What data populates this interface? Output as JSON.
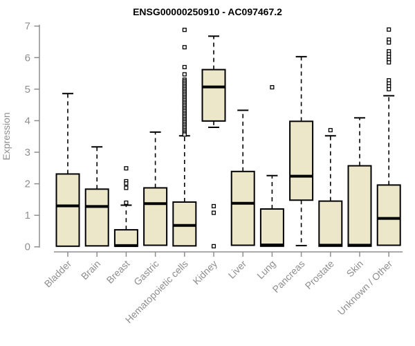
{
  "chart_data": {
    "type": "boxplot",
    "title": "ENSG00000250910 - AC097467.2",
    "ylabel": "Expression",
    "xlabel": "",
    "ylim": [
      0,
      7
    ],
    "yticks": [
      0,
      1,
      2,
      3,
      4,
      5,
      6,
      7
    ],
    "grid": false,
    "legend": "none",
    "colors": {
      "box_fill": "#EDE7C9",
      "box_stroke": "#000000",
      "median": "#000000",
      "whisker": "#000000",
      "axis": "#8e8e8e",
      "title": "#000000",
      "background": "#ffffff"
    },
    "categories": [
      "Bladder",
      "Brain",
      "Breast",
      "Gastric",
      "Hematopoietic cells",
      "Kidney",
      "Liver",
      "Lung",
      "Pancreas",
      "Prostate",
      "Skin",
      "Unknown / Other"
    ],
    "series": [
      {
        "category": "Bladder",
        "low": 0.02,
        "q1": 0.02,
        "median": 1.3,
        "q3": 2.31,
        "high": 4.86,
        "outliers": []
      },
      {
        "category": "Brain",
        "low": 0.03,
        "q1": 0.03,
        "median": 1.28,
        "q3": 1.83,
        "high": 3.17,
        "outliers": []
      },
      {
        "category": "Breast",
        "low": 0.02,
        "q1": 0.02,
        "median": 0.04,
        "q3": 0.54,
        "high": 1.32,
        "outliers": [
          2.49,
          2.08,
          2.01,
          1.87,
          1.4
        ]
      },
      {
        "category": "Gastric",
        "low": 0.05,
        "q1": 0.05,
        "median": 1.37,
        "q3": 1.87,
        "high": 3.64,
        "outliers": []
      },
      {
        "category": "Hematopoietic cells",
        "low": 0.03,
        "q1": 0.03,
        "median": 0.68,
        "q3": 1.42,
        "high": 3.52,
        "outliers": [
          6.88,
          6.33,
          5.7,
          5.47,
          5.3,
          5.25,
          5.2,
          5.15,
          5.1,
          5.05,
          5.0,
          4.95,
          4.9,
          4.85,
          4.8,
          4.75,
          4.7,
          4.65,
          4.6,
          4.55,
          4.5,
          4.45,
          4.4,
          4.35,
          4.3,
          4.25,
          4.2,
          4.15,
          4.1,
          4.05,
          4.0,
          3.95,
          3.9,
          3.85,
          3.8,
          3.75,
          3.7,
          3.65,
          3.6,
          3.56
        ]
      },
      {
        "category": "Kidney",
        "low": 3.79,
        "q1": 3.99,
        "median": 5.07,
        "q3": 5.62,
        "high": 6.68,
        "outliers": [
          1.29,
          1.08,
          0.02
        ]
      },
      {
        "category": "Liver",
        "low": 0.05,
        "q1": 0.05,
        "median": 1.38,
        "q3": 2.39,
        "high": 4.33,
        "outliers": []
      },
      {
        "category": "Lung",
        "low": 0.02,
        "q1": 0.02,
        "median": 0.06,
        "q3": 1.2,
        "high": 2.26,
        "outliers": [
          5.06
        ]
      },
      {
        "category": "Pancreas",
        "low": 0.04,
        "q1": 1.48,
        "median": 2.24,
        "q3": 3.98,
        "high": 6.03,
        "outliers": []
      },
      {
        "category": "Prostate",
        "low": 0.02,
        "q1": 0.02,
        "median": 0.05,
        "q3": 1.45,
        "high": 3.52,
        "outliers": [
          3.7
        ]
      },
      {
        "category": "Skin",
        "low": 0.02,
        "q1": 0.02,
        "median": 0.05,
        "q3": 2.57,
        "high": 4.09,
        "outliers": []
      },
      {
        "category": "Unknown / Other",
        "low": 0.05,
        "q1": 0.05,
        "median": 0.9,
        "q3": 1.96,
        "high": 4.79,
        "outliers": [
          6.89,
          6.57,
          6.48,
          6.2,
          6.11,
          6.02,
          5.93,
          5.85,
          5.28,
          5.18,
          5.09,
          5.0
        ]
      }
    ]
  }
}
